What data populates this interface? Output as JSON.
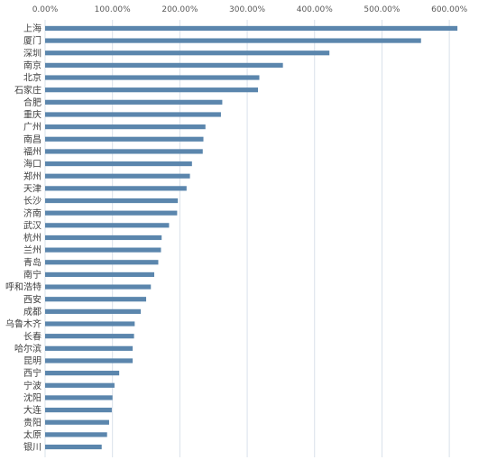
{
  "chart_data": {
    "type": "bar",
    "orientation": "horizontal",
    "axis_position": "top",
    "grid": true,
    "legend": "none",
    "bar_color": "#5b86ad",
    "grid_color": "#d9e1ea",
    "xlim": [
      0,
      6.4
    ],
    "xticks": [
      0,
      1,
      2,
      3,
      4,
      5,
      6
    ],
    "xtick_labels": [
      "0.00%",
      "100.00%",
      "200.00%",
      "300.00%",
      "400.00%",
      "500.00%",
      "600.00%"
    ],
    "categories": [
      "上海",
      "厦门",
      "深圳",
      "南京",
      "北京",
      "石家庄",
      "合肥",
      "重庆",
      "广州",
      "南昌",
      "福州",
      "海口",
      "郑州",
      "天津",
      "长沙",
      "济南",
      "武汉",
      "杭州",
      "兰州",
      "青岛",
      "南宁",
      "呼和浩特",
      "西安",
      "成都",
      "乌鲁木齐",
      "长春",
      "哈尔滨",
      "昆明",
      "西宁",
      "宁波",
      "沈阳",
      "大连",
      "贵阳",
      "太原",
      "银川"
    ],
    "values": [
      6.12,
      5.58,
      4.22,
      3.53,
      3.18,
      3.16,
      2.63,
      2.61,
      2.38,
      2.35,
      2.34,
      2.18,
      2.15,
      2.1,
      1.97,
      1.96,
      1.84,
      1.73,
      1.72,
      1.68,
      1.62,
      1.57,
      1.5,
      1.42,
      1.33,
      1.32,
      1.3,
      1.3,
      1.1,
      1.03,
      1.0,
      0.99,
      0.95,
      0.92,
      0.84
    ]
  }
}
